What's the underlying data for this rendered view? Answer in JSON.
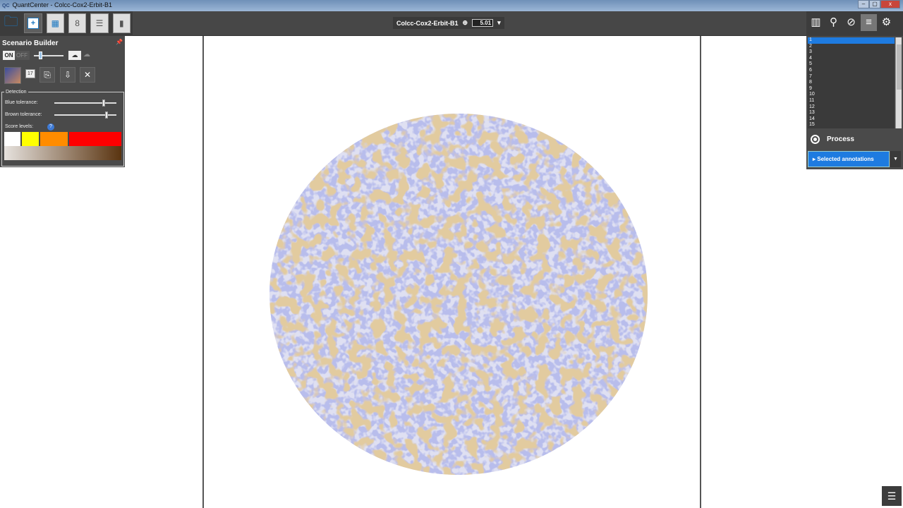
{
  "window": {
    "logo": "QC",
    "title": "QuantCenter - Colcc-Cox2-Erbit-B1",
    "minimize": "–",
    "maximize": "▢",
    "close": "x"
  },
  "toolbar": {
    "image_name": "Colcc-Cox2-Erbit-B1",
    "zoom_value": "5.01"
  },
  "scenario_builder": {
    "title": "Scenario Builder",
    "on_label": "ON",
    "off_label": "OFF",
    "slider_tooltip": "17",
    "slider_value": 17,
    "detection": {
      "legend": "Detection",
      "blue_tolerance_label": "Blue tolerance:",
      "blue_tolerance_fraction": 0.8,
      "brown_tolerance_label": "Brown tolerance:",
      "brown_tolerance_fraction": 0.85,
      "score_levels_label": "Score levels:",
      "score_colors": [
        "#ffffff",
        "#ffff00",
        "#ff8c00",
        "#ff0000"
      ]
    }
  },
  "right_panel": {
    "list_items": [
      "1",
      "2",
      "3",
      "4",
      "5",
      "6",
      "7",
      "8",
      "9",
      "10",
      "11",
      "12",
      "13",
      "14",
      "15"
    ],
    "selected_index": 0,
    "process_label": "Process",
    "selected_annotations_label": "Selected annotations"
  },
  "colors": {
    "accent": "#1e7be0",
    "panel": "#4a4a4a",
    "stain_blue": "#7b82d6",
    "stain_brown": "#c29a5a"
  }
}
